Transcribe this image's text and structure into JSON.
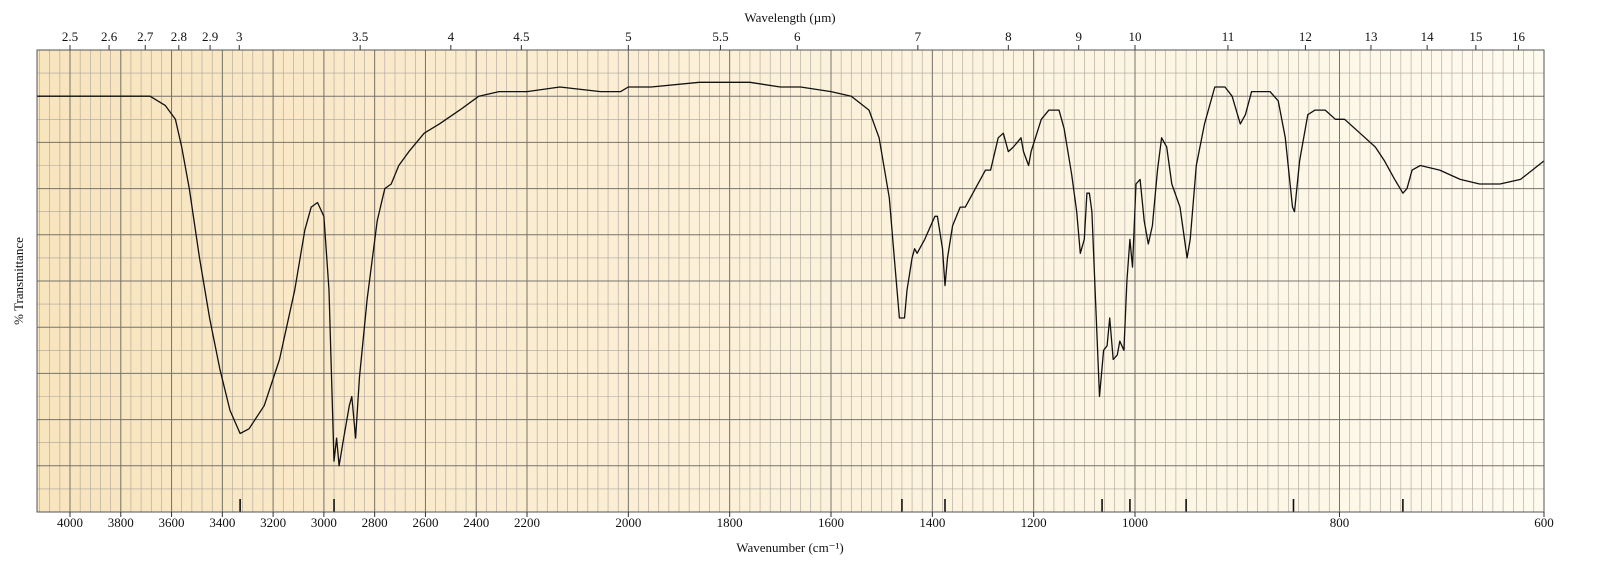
{
  "chart_data": {
    "type": "line",
    "xlabel": "Wavenumber (cm⁻¹)",
    "x2label": "Wavelength (µm)",
    "ylabel": "% Transmittance",
    "color": "#111111",
    "xlim": [
      4130,
      600
    ],
    "scale_breaks": [
      2200,
      1000
    ],
    "ylim": [
      0,
      100
    ],
    "xticks": [
      4000,
      3800,
      3600,
      3400,
      3200,
      3000,
      2800,
      2600,
      2400,
      2200,
      2000,
      1800,
      1600,
      1400,
      1200,
      1000,
      800,
      600
    ],
    "x2ticks": [
      2.5,
      2.6,
      2.7,
      2.8,
      2.9,
      3,
      3.5,
      4,
      4.5,
      5,
      5.5,
      6,
      7,
      8,
      9,
      10,
      11,
      12,
      13,
      14,
      15,
      16
    ],
    "ygrid": [
      0,
      10,
      20,
      30,
      40,
      50,
      60,
      70,
      80,
      90,
      100
    ],
    "peaks": [
      3330,
      2960,
      1460,
      1375,
      1065,
      1010,
      950,
      845,
      738
    ],
    "x": [
      4130,
      4040,
      3880,
      3685,
      3625,
      3585,
      3560,
      3530,
      3490,
      3450,
      3410,
      3370,
      3330,
      3295,
      3235,
      3175,
      3115,
      3075,
      3050,
      3025,
      3000,
      2980,
      2960,
      2950,
      2940,
      2925,
      2900,
      2890,
      2875,
      2860,
      2830,
      2790,
      2760,
      2735,
      2705,
      2665,
      2605,
      2545,
      2465,
      2390,
      2310,
      2200,
      2135,
      2055,
      2015,
      2000,
      1955,
      1860,
      1760,
      1700,
      1660,
      1600,
      1560,
      1525,
      1505,
      1485,
      1475,
      1465,
      1455,
      1450,
      1440,
      1435,
      1430,
      1415,
      1395,
      1390,
      1380,
      1375,
      1370,
      1360,
      1345,
      1335,
      1315,
      1295,
      1285,
      1270,
      1260,
      1250,
      1240,
      1225,
      1220,
      1210,
      1205,
      1185,
      1170,
      1150,
      1140,
      1125,
      1115,
      1108,
      1100,
      1095,
      1090,
      1085,
      1078,
      1070,
      1062,
      1055,
      1050,
      1043,
      1035,
      1030,
      1022,
      1016,
      1010,
      1005,
      999,
      995,
      991,
      987,
      983,
      978,
      974,
      969,
      964,
      956,
      949,
      946,
      940,
      932,
      922,
      912,
      905,
      897,
      892,
      886,
      876,
      868,
      860,
      853,
      846,
      844,
      839,
      831,
      824,
      819,
      814,
      804,
      795,
      780,
      765,
      756,
      746,
      738,
      734,
      729,
      721,
      702,
      682,
      663,
      643,
      623,
      600
    ],
    "values": [
      90,
      90,
      90,
      90,
      88,
      85,
      79,
      70,
      55,
      42,
      31,
      22,
      17,
      18,
      23,
      33,
      48,
      61,
      66,
      67,
      64,
      48,
      11,
      16,
      10,
      15,
      23,
      25,
      16,
      29,
      46,
      63,
      70,
      71,
      75,
      78,
      82,
      84,
      87,
      90,
      91,
      91,
      92,
      91,
      91,
      92,
      92,
      93,
      93,
      92,
      92,
      91,
      90,
      87,
      81,
      68,
      55,
      42,
      42,
      48,
      55,
      57,
      56,
      59,
      64,
      64,
      57,
      49,
      55,
      62,
      66,
      66,
      70,
      74,
      74,
      81,
      82,
      78,
      79,
      81,
      78,
      75,
      78,
      85,
      87,
      87,
      83,
      73,
      65,
      56,
      59,
      69,
      69,
      65,
      46,
      25,
      35,
      36,
      42,
      33,
      34,
      37,
      35,
      50,
      59,
      53,
      71,
      72,
      63,
      58,
      62,
      74,
      81,
      79,
      71,
      66,
      55,
      59,
      75,
      84,
      92,
      92,
      90,
      84,
      86,
      91,
      91,
      91,
      89,
      81,
      66,
      65,
      76,
      86,
      87,
      87,
      87,
      85,
      85,
      82,
      79,
      76,
      72,
      69,
      70,
      74,
      75,
      74,
      72,
      71,
      71,
      72,
      76
    ]
  }
}
